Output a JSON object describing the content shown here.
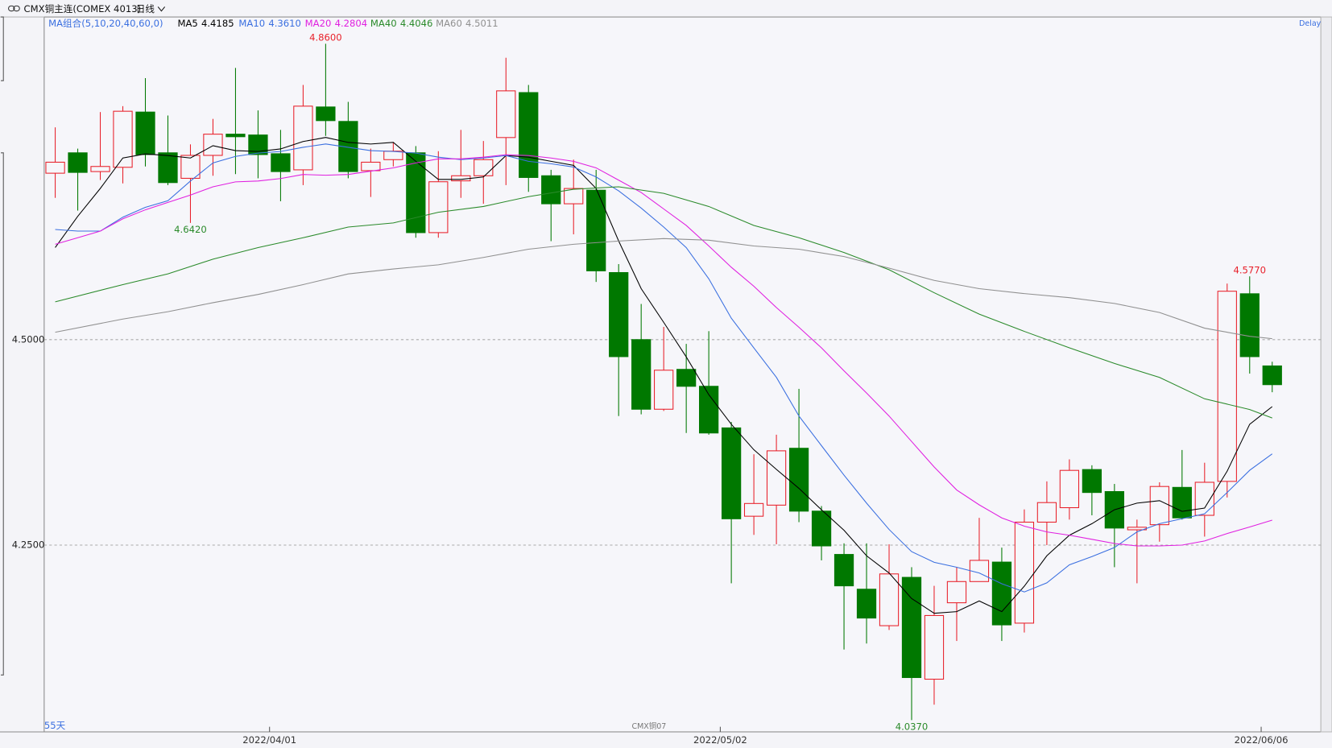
{
  "header": {
    "symbol": "CMX铜主连(COMEX 4013)",
    "period": "日线",
    "indicator": "MA组合(5,10,20,40,60,0)",
    "status": "Delay",
    "span": "55天",
    "contract": "CMX铜07"
  },
  "chart_data": {
    "type": "candlestick",
    "ylim": [
      4.0227,
      4.8926
    ],
    "yticks": [
      {
        "value": 4.5,
        "label": "4.5000"
      },
      {
        "value": 4.25,
        "label": "4.2500"
      }
    ],
    "grid": true,
    "up_color": "#e8202a",
    "down_color": "#007800",
    "categories": [
      null,
      null,
      null,
      null,
      null,
      null,
      null,
      null,
      null,
      null,
      "2022/04/01",
      null,
      null,
      null,
      null,
      null,
      null,
      null,
      null,
      null,
      null,
      null,
      null,
      null,
      null,
      null,
      null,
      null,
      null,
      null,
      "2022/05/02",
      null,
      null,
      null,
      null,
      null,
      null,
      null,
      null,
      null,
      null,
      null,
      null,
      null,
      null,
      null,
      null,
      null,
      null,
      null,
      null,
      null,
      null,
      null,
      "2022/06/06"
    ],
    "open": [
      4.7025,
      4.7273,
      4.7045,
      4.7097,
      4.7769,
      4.7273,
      4.6963,
      4.7242,
      4.75,
      4.749,
      4.7262,
      4.7066,
      4.7831,
      4.7655,
      4.7056,
      4.719,
      4.7273,
      4.6302,
      4.6932,
      4.6994,
      4.7459,
      4.8006,
      4.6994,
      4.6653,
      4.6818,
      4.5816,
      4.5,
      4.4153,
      4.4638,
      4.4432,
      4.3926,
      4.2851,
      4.2986,
      4.3678,
      4.2913,
      4.2386,
      4.1963,
      4.1519,
      4.2107,
      4.0868,
      4.1798,
      4.2056,
      4.2293,
      4.155,
      4.2779,
      4.2955,
      4.3419,
      4.3151,
      4.2686,
      4.2748,
      4.3202,
      4.2862,
      4.3275,
      4.5558,
      4.468
    ],
    "high": [
      4.7583,
      4.7324,
      4.7769,
      4.7841,
      4.8182,
      4.7727,
      4.7376,
      4.7686,
      4.8306,
      4.7789,
      4.7552,
      4.8099,
      4.86,
      4.7893,
      4.7324,
      4.7397,
      4.7355,
      4.7293,
      4.7552,
      4.7417,
      4.843,
      4.8099,
      4.7066,
      4.719,
      4.7066,
      4.5919,
      4.5434,
      4.5155,
      4.4948,
      4.5103,
      4.3998,
      4.3605,
      4.3843,
      4.4401,
      4.2975,
      4.2521,
      4.2521,
      4.251,
      4.2231,
      4.2004,
      4.2231,
      4.2831,
      4.2469,
      4.2934,
      4.3275,
      4.3543,
      4.3471,
      4.3244,
      4.281,
      4.3264,
      4.3657,
      4.3502,
      4.5682,
      4.577,
      4.4731
    ],
    "low": [
      4.6725,
      4.657,
      4.6942,
      4.6901,
      4.7107,
      4.688,
      4.642,
      4.6994,
      4.7014,
      4.6963,
      4.6684,
      4.688,
      4.7479,
      4.6963,
      4.6736,
      4.7107,
      4.624,
      4.624,
      4.6725,
      4.6653,
      4.688,
      4.6798,
      4.6198,
      4.6281,
      4.5702,
      4.407,
      4.4091,
      4.4132,
      4.3864,
      4.3843,
      4.2035,
      4.2624,
      4.251,
      4.2779,
      4.2314,
      4.1229,
      4.1302,
      4.1467,
      4.037,
      4.0558,
      4.1333,
      4.2056,
      4.1333,
      4.1436,
      4.25,
      4.281,
      4.2862,
      4.2231,
      4.2035,
      4.2541,
      4.281,
      4.2603,
      4.3079,
      4.4587,
      4.436
    ],
    "close": [
      4.7159,
      4.7035,
      4.7107,
      4.7779,
      4.7252,
      4.6911,
      4.7242,
      4.75,
      4.7469,
      4.7252,
      4.7045,
      4.7841,
      4.7665,
      4.7045,
      4.7159,
      4.7293,
      4.6302,
      4.6921,
      4.6994,
      4.719,
      4.8027,
      4.6973,
      4.6653,
      4.6839,
      4.5837,
      4.4793,
      4.4153,
      4.4628,
      4.4432,
      4.3864,
      4.282,
      4.3006,
      4.3647,
      4.2913,
      4.249,
      4.2004,
      4.1612,
      4.2149,
      4.0888,
      4.1643,
      4.2056,
      4.2314,
      4.1529,
      4.2779,
      4.3017,
      4.3409,
      4.314,
      4.2707,
      4.2717,
      4.3213,
      4.2831,
      4.3264,
      4.5589,
      4.4793,
      4.4452
    ],
    "series": [
      {
        "name": "MA5",
        "color": "#000000",
        "value_label": "4.4185",
        "x": [
          0,
          1,
          2,
          3,
          4,
          5,
          6,
          7,
          8,
          9,
          10,
          11,
          12,
          13,
          14,
          15,
          16,
          17,
          18,
          19,
          20,
          21,
          22,
          23,
          24,
          25,
          26,
          27,
          28,
          29,
          30,
          31,
          32,
          33,
          34,
          35,
          36,
          37,
          38,
          39,
          40,
          41,
          42,
          43,
          44,
          45,
          46,
          47,
          48,
          49,
          50,
          51,
          52,
          53,
          54
        ],
        "values": [
          4.612,
          4.65,
          4.684,
          4.721,
          4.726,
          4.724,
          4.721,
          4.736,
          4.73,
          4.729,
          4.732,
          4.741,
          4.746,
          4.74,
          4.738,
          4.74,
          4.717,
          4.695,
          4.695,
          4.698,
          4.724,
          4.722,
          4.717,
          4.712,
          4.684,
          4.62,
          4.562,
          4.521,
          4.479,
          4.433,
          4.397,
          4.366,
          4.342,
          4.319,
          4.293,
          4.268,
          4.237,
          4.216,
          4.185,
          4.167,
          4.169,
          4.182,
          4.169,
          4.2,
          4.237,
          4.262,
          4.276,
          4.293,
          4.301,
          4.304,
          4.291,
          4.295,
          4.34,
          4.397,
          4.4185
        ]
      },
      {
        "name": "MA10",
        "color": "#3a6fe0",
        "value_label": "4.3610",
        "x": [
          0,
          1,
          2,
          3,
          4,
          5,
          6,
          7,
          8,
          9,
          10,
          11,
          12,
          13,
          14,
          15,
          16,
          17,
          18,
          19,
          20,
          21,
          22,
          23,
          24,
          25,
          26,
          27,
          28,
          29,
          30,
          31,
          32,
          33,
          34,
          35,
          36,
          37,
          38,
          39,
          40,
          41,
          42,
          43,
          44,
          45,
          46,
          47,
          48,
          49,
          50,
          51,
          52,
          53,
          54
        ],
        "values": [
          4.634,
          4.632,
          4.632,
          4.649,
          4.661,
          4.669,
          4.693,
          4.715,
          4.723,
          4.727,
          4.729,
          4.734,
          4.738,
          4.734,
          4.73,
          4.729,
          4.727,
          4.722,
          4.719,
          4.721,
          4.724,
          4.717,
          4.714,
          4.71,
          4.698,
          4.681,
          4.66,
          4.637,
          4.612,
          4.574,
          4.526,
          4.49,
          4.454,
          4.407,
          4.371,
          4.335,
          4.301,
          4.269,
          4.242,
          4.229,
          4.223,
          4.216,
          4.203,
          4.193,
          4.204,
          4.226,
          4.236,
          4.247,
          4.266,
          4.276,
          4.282,
          4.288,
          4.314,
          4.341,
          4.361
        ]
      },
      {
        "name": "MA20",
        "color": "#e020e0",
        "value_label": "4.2804",
        "x": [
          0,
          1,
          2,
          3,
          4,
          5,
          6,
          7,
          8,
          9,
          10,
          11,
          12,
          13,
          14,
          15,
          16,
          17,
          18,
          19,
          20,
          21,
          22,
          23,
          24,
          25,
          26,
          27,
          28,
          29,
          30,
          31,
          32,
          33,
          34,
          35,
          36,
          37,
          38,
          39,
          40,
          41,
          42,
          43,
          44,
          45,
          46,
          47,
          48,
          49,
          50,
          51,
          52,
          53,
          54
        ],
        "values": [
          4.616,
          4.624,
          4.632,
          4.647,
          4.658,
          4.667,
          4.676,
          4.686,
          4.692,
          4.693,
          4.696,
          4.701,
          4.7,
          4.701,
          4.705,
          4.709,
          4.715,
          4.72,
          4.72,
          4.722,
          4.725,
          4.724,
          4.721,
          4.717,
          4.709,
          4.694,
          4.679,
          4.659,
          4.639,
          4.614,
          4.588,
          4.565,
          4.539,
          4.515,
          4.49,
          4.462,
          4.435,
          4.407,
          4.376,
          4.345,
          4.317,
          4.299,
          4.283,
          4.273,
          4.266,
          4.262,
          4.257,
          4.252,
          4.249,
          4.249,
          4.25,
          4.255,
          4.264,
          4.272,
          4.2804
        ]
      },
      {
        "name": "MA40",
        "color": "#2a8a2a",
        "value_label": "4.4046",
        "x": [
          0,
          3,
          5,
          7,
          9,
          11,
          13,
          15,
          17,
          19,
          21,
          23,
          25,
          27,
          29,
          31,
          33,
          35,
          37,
          39,
          41,
          43,
          45,
          47,
          49,
          51,
          53,
          54
        ],
        "values": [
          4.546,
          4.567,
          4.58,
          4.598,
          4.612,
          4.624,
          4.637,
          4.642,
          4.655,
          4.662,
          4.674,
          4.683,
          4.686,
          4.678,
          4.662,
          4.639,
          4.624,
          4.606,
          4.585,
          4.557,
          4.531,
          4.51,
          4.49,
          4.471,
          4.454,
          4.428,
          4.415,
          4.4046
        ]
      },
      {
        "name": "MA60",
        "color": "#909090",
        "value_label": "4.5011",
        "x": [
          0,
          3,
          5,
          7,
          9,
          11,
          13,
          15,
          17,
          19,
          21,
          23,
          25,
          27,
          29,
          31,
          33,
          35,
          37,
          39,
          41,
          43,
          45,
          47,
          49,
          51,
          53,
          54
        ],
        "values": [
          4.509,
          4.525,
          4.534,
          4.545,
          4.555,
          4.567,
          4.58,
          4.586,
          4.591,
          4.6,
          4.61,
          4.616,
          4.62,
          4.623,
          4.621,
          4.614,
          4.61,
          4.601,
          4.587,
          4.572,
          4.562,
          4.556,
          4.551,
          4.544,
          4.533,
          4.514,
          4.504,
          4.5011
        ]
      }
    ],
    "annotations": [
      {
        "x": 12,
        "value": 4.86,
        "label": "4.8600",
        "color": "#e8202a",
        "side": "above"
      },
      {
        "x": 6,
        "value": 4.642,
        "label": "4.6420",
        "color": "#2a8a2a",
        "side": "below"
      },
      {
        "x": 38,
        "value": 4.037,
        "label": "4.0370",
        "color": "#2a8a2a",
        "side": "below"
      },
      {
        "x": 53,
        "value": 4.577,
        "label": "4.5770",
        "color": "#e8202a",
        "side": "above"
      }
    ]
  }
}
